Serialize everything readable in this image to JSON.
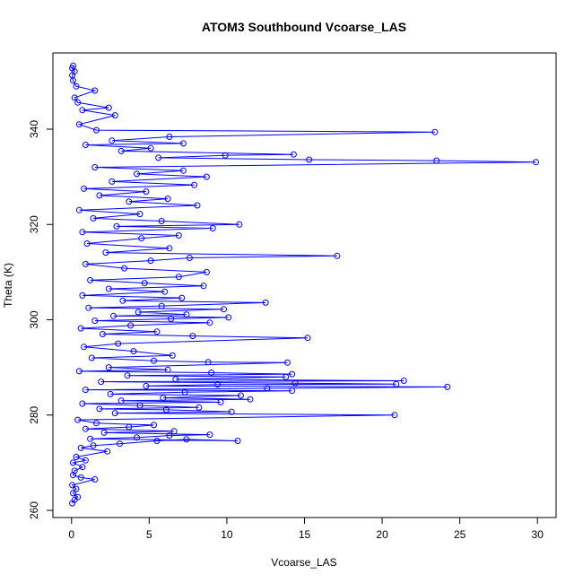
{
  "chart_data": {
    "type": "scatter",
    "title": "ATOM3 Southbound Vcoarse_LAS",
    "xlabel": "Vcoarse_LAS",
    "ylabel": "Theta (K)",
    "xlim": [
      -1.2,
      31.2
    ],
    "ylim": [
      258.5,
      356.0
    ],
    "x_ticks": [
      0,
      5,
      10,
      15,
      20,
      25,
      30
    ],
    "y_ticks": [
      260,
      280,
      300,
      320,
      340
    ],
    "series_color": "#0000ff",
    "marker": "open-circle",
    "connected_line": true,
    "grid": false,
    "legend": "none",
    "points": [
      {
        "x": 0.05,
        "y": 261.5
      },
      {
        "x": 0.2,
        "y": 262.2
      },
      {
        "x": 0.4,
        "y": 262.8
      },
      {
        "x": 0.1,
        "y": 263.6
      },
      {
        "x": 0.3,
        "y": 264.5
      },
      {
        "x": 0.05,
        "y": 265.3
      },
      {
        "x": 1.5,
        "y": 266.5
      },
      {
        "x": 0.6,
        "y": 266.9
      },
      {
        "x": 0.1,
        "y": 267.4
      },
      {
        "x": 0.2,
        "y": 268.3
      },
      {
        "x": 0.7,
        "y": 269.1
      },
      {
        "x": 0.1,
        "y": 270.0
      },
      {
        "x": 0.9,
        "y": 270.5
      },
      {
        "x": 0.3,
        "y": 271.2
      },
      {
        "x": 2.3,
        "y": 272.4
      },
      {
        "x": 0.6,
        "y": 273.1
      },
      {
        "x": 1.4,
        "y": 273.6
      },
      {
        "x": 3.1,
        "y": 274.0
      },
      {
        "x": 5.5,
        "y": 274.6
      },
      {
        "x": 7.4,
        "y": 274.9
      },
      {
        "x": 10.7,
        "y": 274.6
      },
      {
        "x": 1.2,
        "y": 275.0
      },
      {
        "x": 4.2,
        "y": 275.3
      },
      {
        "x": 6.3,
        "y": 275.7
      },
      {
        "x": 8.9,
        "y": 275.9
      },
      {
        "x": 2.1,
        "y": 276.3
      },
      {
        "x": 6.6,
        "y": 276.6
      },
      {
        "x": 0.9,
        "y": 277.1
      },
      {
        "x": 3.7,
        "y": 277.5
      },
      {
        "x": 5.3,
        "y": 277.9
      },
      {
        "x": 1.6,
        "y": 278.3
      },
      {
        "x": 0.4,
        "y": 279.0
      },
      {
        "x": 20.8,
        "y": 280.0
      },
      {
        "x": 2.8,
        "y": 280.4
      },
      {
        "x": 10.3,
        "y": 280.7
      },
      {
        "x": 6.1,
        "y": 281.1
      },
      {
        "x": 1.8,
        "y": 281.3
      },
      {
        "x": 8.2,
        "y": 281.6
      },
      {
        "x": 4.4,
        "y": 282.0
      },
      {
        "x": 0.7,
        "y": 282.4
      },
      {
        "x": 9.6,
        "y": 282.7
      },
      {
        "x": 3.2,
        "y": 283.0
      },
      {
        "x": 11.5,
        "y": 283.3
      },
      {
        "x": 5.9,
        "y": 283.6
      },
      {
        "x": 10.9,
        "y": 284.1
      },
      {
        "x": 2.5,
        "y": 284.4
      },
      {
        "x": 7.3,
        "y": 284.8
      },
      {
        "x": 14.2,
        "y": 285.1
      },
      {
        "x": 0.9,
        "y": 285.3
      },
      {
        "x": 12.6,
        "y": 285.6
      },
      {
        "x": 24.2,
        "y": 285.9
      },
      {
        "x": 4.8,
        "y": 286.1
      },
      {
        "x": 9.4,
        "y": 286.4
      },
      {
        "x": 20.9,
        "y": 286.5
      },
      {
        "x": 14.4,
        "y": 286.7
      },
      {
        "x": 1.9,
        "y": 287.0
      },
      {
        "x": 21.4,
        "y": 287.2
      },
      {
        "x": 6.7,
        "y": 287.5
      },
      {
        "x": 13.8,
        "y": 288.0
      },
      {
        "x": 3.6,
        "y": 288.3
      },
      {
        "x": 14.2,
        "y": 288.6
      },
      {
        "x": 9.0,
        "y": 288.9
      },
      {
        "x": 0.5,
        "y": 289.2
      },
      {
        "x": 6.2,
        "y": 289.5
      },
      {
        "x": 2.4,
        "y": 290.0
      },
      {
        "x": 13.9,
        "y": 291.0
      },
      {
        "x": 8.8,
        "y": 291.1
      },
      {
        "x": 5.3,
        "y": 291.4
      },
      {
        "x": 1.3,
        "y": 292.0
      },
      {
        "x": 6.5,
        "y": 292.5
      },
      {
        "x": 4.0,
        "y": 293.4
      },
      {
        "x": 0.8,
        "y": 294.3
      },
      {
        "x": 3.0,
        "y": 295.0
      },
      {
        "x": 15.2,
        "y": 296.2
      },
      {
        "x": 7.8,
        "y": 296.6
      },
      {
        "x": 2.0,
        "y": 297.0
      },
      {
        "x": 5.5,
        "y": 297.5
      },
      {
        "x": 0.6,
        "y": 298.2
      },
      {
        "x": 3.8,
        "y": 298.8
      },
      {
        "x": 8.9,
        "y": 299.4
      },
      {
        "x": 1.5,
        "y": 299.8
      },
      {
        "x": 6.4,
        "y": 300.2
      },
      {
        "x": 10.1,
        "y": 300.5
      },
      {
        "x": 2.7,
        "y": 300.8
      },
      {
        "x": 7.4,
        "y": 301.1
      },
      {
        "x": 4.3,
        "y": 301.6
      },
      {
        "x": 9.8,
        "y": 302.2
      },
      {
        "x": 1.1,
        "y": 302.5
      },
      {
        "x": 5.8,
        "y": 302.9
      },
      {
        "x": 12.5,
        "y": 303.6
      },
      {
        "x": 3.3,
        "y": 304.0
      },
      {
        "x": 7.1,
        "y": 304.6
      },
      {
        "x": 0.7,
        "y": 305.1
      },
      {
        "x": 6.0,
        "y": 305.9
      },
      {
        "x": 2.4,
        "y": 306.5
      },
      {
        "x": 8.5,
        "y": 307.1
      },
      {
        "x": 4.7,
        "y": 307.7
      },
      {
        "x": 1.2,
        "y": 308.3
      },
      {
        "x": 6.9,
        "y": 309.0
      },
      {
        "x": 8.7,
        "y": 310.0
      },
      {
        "x": 3.4,
        "y": 310.8
      },
      {
        "x": 0.9,
        "y": 311.7
      },
      {
        "x": 5.1,
        "y": 312.4
      },
      {
        "x": 7.6,
        "y": 313.0
      },
      {
        "x": 17.1,
        "y": 313.4
      },
      {
        "x": 2.2,
        "y": 314.1
      },
      {
        "x": 6.3,
        "y": 315.0
      },
      {
        "x": 1.0,
        "y": 316.0
      },
      {
        "x": 4.5,
        "y": 317.1
      },
      {
        "x": 6.9,
        "y": 317.7
      },
      {
        "x": 0.7,
        "y": 318.4
      },
      {
        "x": 9.1,
        "y": 319.2
      },
      {
        "x": 2.9,
        "y": 319.6
      },
      {
        "x": 10.8,
        "y": 320.0
      },
      {
        "x": 5.8,
        "y": 320.7
      },
      {
        "x": 1.4,
        "y": 321.3
      },
      {
        "x": 4.4,
        "y": 322.2
      },
      {
        "x": 0.5,
        "y": 323.0
      },
      {
        "x": 8.1,
        "y": 324.0
      },
      {
        "x": 3.7,
        "y": 324.8
      },
      {
        "x": 6.2,
        "y": 325.4
      },
      {
        "x": 1.8,
        "y": 326.1
      },
      {
        "x": 4.8,
        "y": 326.9
      },
      {
        "x": 0.8,
        "y": 327.5
      },
      {
        "x": 7.9,
        "y": 328.3
      },
      {
        "x": 2.6,
        "y": 329.0
      },
      {
        "x": 8.7,
        "y": 330.0
      },
      {
        "x": 4.2,
        "y": 330.6
      },
      {
        "x": 7.2,
        "y": 331.3
      },
      {
        "x": 1.5,
        "y": 332.0
      },
      {
        "x": 29.9,
        "y": 333.1
      },
      {
        "x": 23.5,
        "y": 333.4
      },
      {
        "x": 15.3,
        "y": 333.6
      },
      {
        "x": 5.6,
        "y": 334.0
      },
      {
        "x": 9.9,
        "y": 334.5
      },
      {
        "x": 14.3,
        "y": 334.7
      },
      {
        "x": 3.2,
        "y": 335.4
      },
      {
        "x": 5.1,
        "y": 336.0
      },
      {
        "x": 0.9,
        "y": 336.7
      },
      {
        "x": 7.2,
        "y": 337.0
      },
      {
        "x": 2.6,
        "y": 337.6
      },
      {
        "x": 6.3,
        "y": 338.4
      },
      {
        "x": 23.4,
        "y": 339.4
      },
      {
        "x": 1.6,
        "y": 339.8
      },
      {
        "x": 0.5,
        "y": 341.0
      },
      {
        "x": 2.8,
        "y": 342.9
      },
      {
        "x": 0.7,
        "y": 344.0
      },
      {
        "x": 2.4,
        "y": 344.5
      },
      {
        "x": 0.4,
        "y": 345.6
      },
      {
        "x": 0.2,
        "y": 346.6
      },
      {
        "x": 1.5,
        "y": 348.1
      },
      {
        "x": 0.3,
        "y": 349.0
      },
      {
        "x": 0.1,
        "y": 350.2
      },
      {
        "x": 0.05,
        "y": 351.3
      },
      {
        "x": 0.2,
        "y": 352.1
      },
      {
        "x": 0.05,
        "y": 352.8
      },
      {
        "x": 0.1,
        "y": 353.3
      }
    ]
  }
}
